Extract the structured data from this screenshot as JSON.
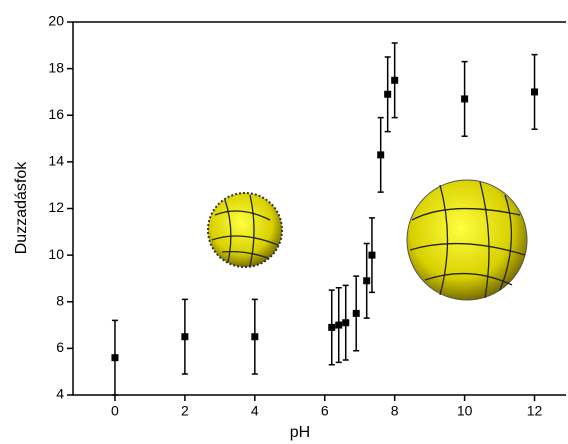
{
  "chart_data": {
    "type": "scatter",
    "x_label": "pH",
    "y_label": "Duzzadásfok",
    "x": [
      0,
      2,
      4,
      6.2,
      6.4,
      6.6,
      6.9,
      7.2,
      7.35,
      7.6,
      7.8,
      8.0,
      10,
      12
    ],
    "values": [
      5.6,
      6.5,
      6.5,
      6.9,
      7.0,
      7.1,
      7.5,
      8.9,
      10.0,
      14.3,
      16.9,
      17.5,
      16.7,
      17.0
    ],
    "errors": [
      1.6,
      1.6,
      1.6,
      1.6,
      1.6,
      1.6,
      1.6,
      1.6,
      1.6,
      1.6,
      1.6,
      1.6,
      1.6,
      1.6
    ],
    "color": "#000000",
    "xlim": [
      -1.2,
      12.9
    ],
    "ylim": [
      4,
      20
    ],
    "xticks": [
      0,
      2,
      4,
      6,
      8,
      10,
      12
    ],
    "yticks": [
      4,
      6,
      8,
      10,
      12,
      14,
      16,
      18,
      20
    ],
    "grid": false
  }
}
